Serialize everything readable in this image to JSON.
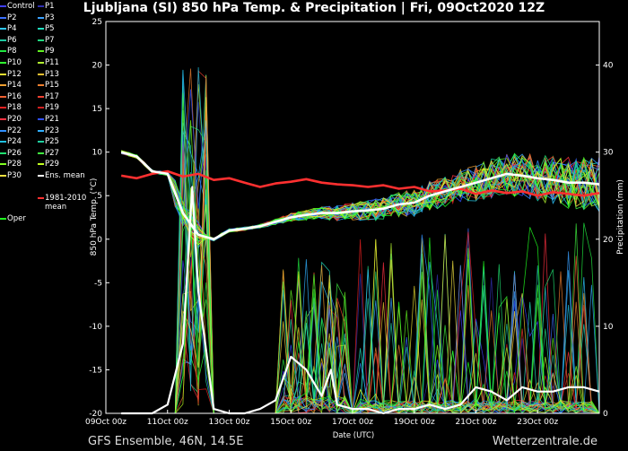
{
  "title": "Ljubljana  (SI)  850 hPa Temp. & Precipitation | Fri, 09Oct2020 12Z",
  "footer": {
    "left": "GFS Ensemble, 46N, 14.5E",
    "right": "Wetterzentrale.de"
  },
  "legend": [
    {
      "label": "Control",
      "color": "#3f3fff"
    },
    {
      "label": "P1",
      "color": "#2f2faf"
    },
    {
      "label": "P2",
      "color": "#3a6fff"
    },
    {
      "label": "P3",
      "color": "#3aa0ff"
    },
    {
      "label": "P4",
      "color": "#2ec8ff"
    },
    {
      "label": "P5",
      "color": "#20e0c0"
    },
    {
      "label": "P6",
      "color": "#1ec8a0"
    },
    {
      "label": "P7",
      "color": "#20d880"
    },
    {
      "label": "P8",
      "color": "#20e840"
    },
    {
      "label": "P9",
      "color": "#60f020"
    },
    {
      "label": "P10",
      "color": "#30ff30"
    },
    {
      "label": "P11",
      "color": "#b0f030"
    },
    {
      "label": "P12",
      "color": "#e8e030"
    },
    {
      "label": "P13",
      "color": "#f0c030"
    },
    {
      "label": "P14",
      "color": "#f0a030"
    },
    {
      "label": "P15",
      "color": "#f08030"
    },
    {
      "label": "P16",
      "color": "#f06030"
    },
    {
      "label": "P17",
      "color": "#f04030"
    },
    {
      "label": "P18",
      "color": "#e82020"
    },
    {
      "label": "P19",
      "color": "#d02020"
    },
    {
      "label": "P20",
      "color": "#ff3040"
    },
    {
      "label": "P21",
      "color": "#3050ff"
    },
    {
      "label": "P22",
      "color": "#3090ff"
    },
    {
      "label": "P23",
      "color": "#30b0ff"
    },
    {
      "label": "P24",
      "color": "#20c0e0"
    },
    {
      "label": "P25",
      "color": "#20d0a0"
    },
    {
      "label": "P26",
      "color": "#20e070"
    },
    {
      "label": "P27",
      "color": "#40f040"
    },
    {
      "label": "P28",
      "color": "#80ff20"
    },
    {
      "label": "P29",
      "color": "#c0ff20"
    },
    {
      "label": "P30",
      "color": "#f0e040"
    },
    {
      "label": "Ens. mean",
      "color": "#ffffff"
    },
    {
      "label": "1981-2010 mean",
      "color": "#ff3030"
    },
    {
      "label": "Oper",
      "color": "#20ff20"
    }
  ],
  "chart_data": {
    "type": "line",
    "title": "Ljubljana  (SI)  850 hPa Temp. & Precipitation | Fri, 09Oct2020 12Z",
    "xlabel": "Date (UTC)",
    "ylabel": "850 hPa Temp. (°C)",
    "y2label": "Precipitation (mm)",
    "xlim": [
      0,
      16
    ],
    "ylim": [
      -20,
      25
    ],
    "y2lim": [
      0,
      45
    ],
    "x_tick_labels": [
      "09Oct 00z",
      "11Oct 00z",
      "13Oct 00z",
      "15Oct 00z",
      "17Oct 00z",
      "19Oct 00z",
      "21Oct 00z",
      "23Oct 00z"
    ],
    "x_tick_values": [
      0,
      2,
      4,
      6,
      8,
      10,
      12,
      14
    ],
    "y_ticks": [
      -20,
      -15,
      -10,
      -5,
      0,
      5,
      10,
      15,
      20,
      25
    ],
    "y2_ticks": [
      0,
      10,
      20,
      30,
      40
    ],
    "grid": false,
    "series": [
      {
        "name": "1981-2010 mean",
        "axis": "temp",
        "x": [
          0.5,
          1,
          1.5,
          2,
          2.5,
          3,
          3.5,
          4,
          4.5,
          5,
          5.5,
          6,
          6.5,
          7,
          7.5,
          8,
          8.5,
          9,
          9.5,
          10,
          10.5,
          11,
          11.5,
          12,
          12.5,
          13,
          13.5,
          14,
          14.5,
          15,
          15.5,
          16
        ],
        "values": [
          7.3,
          7.0,
          7.5,
          7.8,
          7.2,
          7.5,
          6.8,
          7.0,
          6.5,
          6.0,
          6.4,
          6.6,
          6.9,
          6.5,
          6.3,
          6.2,
          6.0,
          6.2,
          5.8,
          6.0,
          5.5,
          5.6,
          5.8,
          5.2,
          5.6,
          5.3,
          5.5,
          5.0,
          5.4,
          5.2,
          5.0,
          5.3
        ]
      },
      {
        "name": "Ens. mean",
        "axis": "temp",
        "x": [
          0.5,
          1,
          1.5,
          2,
          2.5,
          3,
          3.5,
          4,
          4.5,
          5,
          5.5,
          6,
          6.5,
          7,
          7.5,
          8,
          8.5,
          9,
          9.5,
          10,
          10.5,
          11,
          11.5,
          12,
          12.5,
          13,
          13.5,
          14,
          14.5,
          15,
          15.5,
          16
        ],
        "values": [
          10.0,
          9.5,
          7.8,
          7.5,
          3.0,
          0.5,
          0.0,
          1.0,
          1.2,
          1.5,
          2.0,
          2.5,
          2.8,
          3.0,
          3.0,
          3.2,
          3.3,
          3.5,
          4.0,
          4.2,
          5.0,
          5.5,
          6.0,
          6.5,
          7.0,
          7.5,
          7.3,
          7.0,
          6.8,
          6.5,
          6.5,
          6.3
        ]
      },
      {
        "name": "Ens. mean",
        "axis": "precip",
        "x": [
          0.5,
          1,
          1.5,
          2,
          2.5,
          2.8,
          3,
          3.5,
          4,
          4.5,
          5,
          5.5,
          6,
          6.5,
          7,
          7.3,
          7.5,
          8,
          8.5,
          9,
          9.5,
          10,
          10.5,
          11,
          11.5,
          12,
          12.5,
          13,
          13.5,
          14,
          14.5,
          15,
          15.5,
          16
        ],
        "values": [
          0,
          0,
          0,
          1.0,
          8.0,
          26.0,
          14.0,
          0.5,
          0,
          0,
          0.5,
          1.5,
          6.5,
          5.0,
          2.0,
          5.0,
          1.0,
          0.5,
          0.5,
          0,
          0.5,
          0.5,
          1.0,
          0.5,
          1.0,
          3.0,
          2.5,
          1.5,
          3.0,
          2.5,
          2.5,
          3.0,
          3.0,
          2.5
        ]
      }
    ]
  }
}
